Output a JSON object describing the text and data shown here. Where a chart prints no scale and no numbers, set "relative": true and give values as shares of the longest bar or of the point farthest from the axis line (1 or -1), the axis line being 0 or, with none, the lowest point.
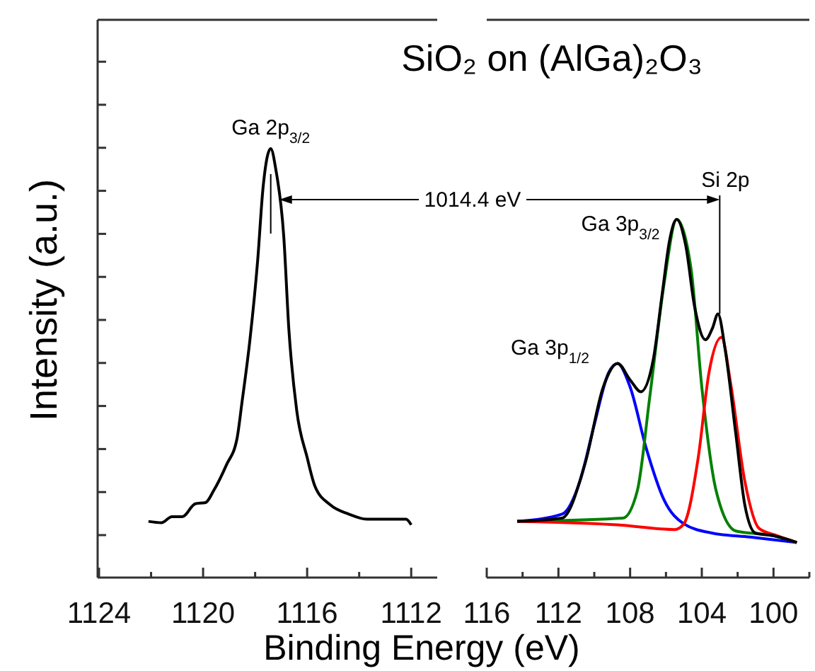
{
  "chart_data": [
    {
      "type": "line",
      "relative": true,
      "title": "SiO₂ on (AlGa)₂O₃",
      "xlabel": "Binding Energy (eV)",
      "ylabel": "Intensity (a.u.)",
      "xlim": [
        1124,
        1111
      ],
      "xticks": [
        1124,
        {
          "value": 1122,
          "label": null
        },
        1120,
        {
          "value": 1118,
          "label": null
        },
        1116,
        {
          "value": 1114,
          "label": null
        },
        1112
      ],
      "annotations": [
        {
          "text": "Ga 2p$_{3/2}$",
          "x": 1117.4,
          "y": 1
        },
        "1014.4 eV"
      ],
      "series": [
        {
          "color": "#000000",
          "x": [
            1122.1,
            1121.6,
            1121.2,
            1120.8,
            1120.3,
            1119.9,
            1119.6,
            1119.1,
            1118.7,
            1118.5,
            1118.2,
            1117.9,
            1117.7,
            1117.4,
            1117.2,
            1116.9,
            1116.7,
            1116.4,
            1116.0,
            1115.7,
            1115.1,
            1114.4,
            1113.7,
            1112.9,
            1112.2,
            1112.0
          ],
          "values": [
            0.131,
            0.128,
            0.142,
            0.142,
            0.172,
            0.175,
            0.202,
            0.263,
            0.323,
            0.411,
            0.554,
            0.741,
            0.906,
            1,
            0.95,
            0.796,
            0.576,
            0.389,
            0.28,
            0.213,
            0.169,
            0.148,
            0.136,
            0.136,
            0.136,
            0.123
          ]
        }
      ]
    },
    {
      "type": "line",
      "relative": true,
      "xlim": [
        116,
        98
      ],
      "xticks": [
        116,
        {
          "value": 114,
          "label": null
        },
        112,
        {
          "value": 110,
          "label": null
        },
        108,
        {
          "value": 106,
          "label": null
        },
        104,
        {
          "value": 102,
          "label": null
        },
        100,
        {
          "value": 98,
          "label": null
        }
      ],
      "annotations": [
        {
          "text": "Ga 3p$_{3/2}$",
          "x": 105.4,
          "y": 1
        },
        {
          "text": "Ga 3p$_{1/2}$",
          "x": 108.7,
          "y": 0.598
        },
        {
          "text": "Si 2p",
          "x": 103.0,
          "y": 0.736
        }
      ],
      "series": [
        {
          "color": "#0000ff",
          "x": [
            114.3,
            111.8,
            110.8,
            110.0,
            109.2,
            108.7,
            108.0,
            107.1,
            106.1,
            105.0,
            103.4,
            101.3,
            98.7
          ],
          "values": [
            0.157,
            0.177,
            0.269,
            0.427,
            0.572,
            0.598,
            0.532,
            0.361,
            0.216,
            0.15,
            0.124,
            0.113,
            0.098
          ]
        },
        {
          "color": "#008000",
          "x": [
            114.3,
            108.4,
            107.6,
            106.9,
            106.1,
            105.4,
            104.6,
            104.0,
            103.2,
            102.1,
            100.0,
            98.7
          ],
          "values": [
            0.157,
            0.166,
            0.242,
            0.506,
            0.822,
            1,
            0.862,
            0.532,
            0.242,
            0.13,
            0.117,
            0.098
          ]
        },
        {
          "color": "#ff0000",
          "x": [
            114.3,
            108.7,
            105.5,
            105.0,
            104.2,
            103.6,
            102.9,
            102.4,
            101.6,
            100.8,
            99.8,
            98.7
          ],
          "values": [
            0.157,
            0.147,
            0.134,
            0.15,
            0.335,
            0.572,
            0.671,
            0.545,
            0.269,
            0.137,
            0.117,
            0.098
          ]
        },
        {
          "color": "#000000",
          "x": [
            114.3,
            111.8,
            110.5,
            109.5,
            108.7,
            108.0,
            107.4,
            106.7,
            106.2,
            105.8,
            105.4,
            104.9,
            104.4,
            103.8,
            103.4,
            103.1,
            102.7,
            102.1,
            101.6,
            101.0,
            100.0,
            98.7
          ],
          "values": [
            0.157,
            0.166,
            0.321,
            0.532,
            0.598,
            0.552,
            0.519,
            0.611,
            0.796,
            0.941,
            1,
            0.928,
            0.756,
            0.664,
            0.697,
            0.736,
            0.638,
            0.4,
            0.203,
            0.124,
            0.117,
            0.098
          ]
        }
      ]
    }
  ]
}
